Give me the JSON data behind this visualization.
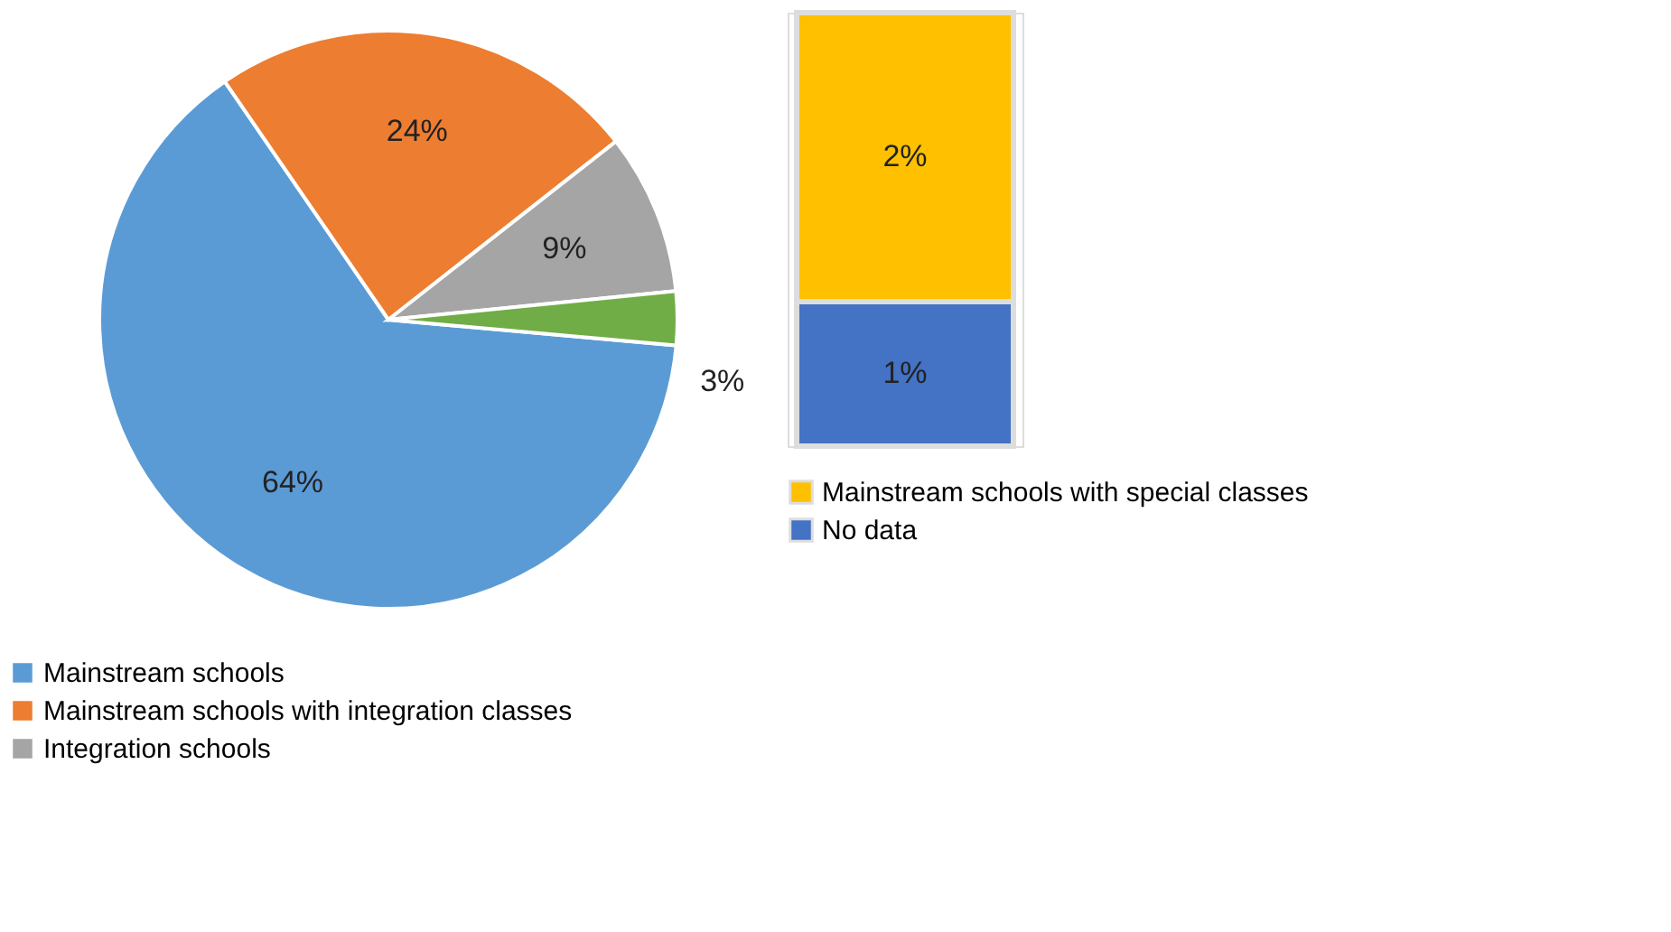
{
  "chart_data": [
    {
      "type": "pie",
      "categories": [
        "Mainstream schools",
        "Mainstream schools with integration classes",
        "Integration schools",
        null
      ],
      "values": [
        64,
        24,
        9,
        3
      ],
      "colors": [
        "#5b9bd5",
        "#ed7d31",
        "#a5a5a5",
        "#70ad47"
      ],
      "value_labels": [
        "64%",
        "24%",
        "9%",
        "3%"
      ],
      "legend": "bottom"
    },
    {
      "type": "bar",
      "stacked": true,
      "categories": [
        null
      ],
      "legend": "bottom",
      "series": [
        {
          "name": "No data",
          "color": "#4472c4",
          "values": [
            1
          ],
          "value_labels": [
            "1%"
          ]
        },
        {
          "name": "Mainstream schools with special classes",
          "color": "#ffc000",
          "values": [
            2
          ],
          "value_labels": [
            "2%"
          ]
        }
      ]
    }
  ]
}
